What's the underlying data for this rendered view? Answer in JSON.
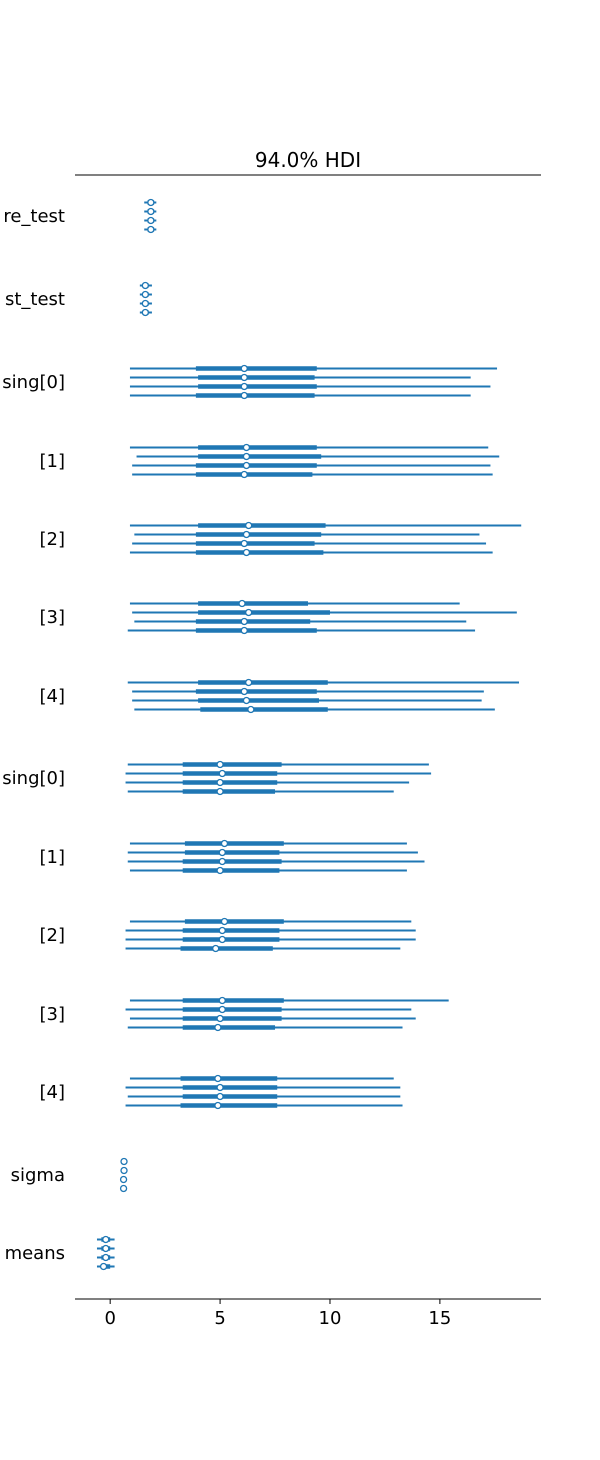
{
  "chart_data": {
    "type": "forest",
    "title": "94.0% HDI",
    "xlim": [
      -1.6,
      19.6
    ],
    "x_ticks": [
      0,
      5,
      10,
      15
    ],
    "x_tick_labels": [
      "0",
      "5",
      "10",
      "15"
    ],
    "grid": false,
    "legend": "none",
    "colors": {
      "series": "#1f77b4",
      "axis": "#000000",
      "marker_fill": "#ffffff"
    },
    "chains": 4,
    "series_note": "each row: [low, q25, mean, q75, high] per chain",
    "rows": [
      {
        "label": "re_test",
        "chains": [
          [
            1.55,
            1.7,
            1.85,
            2.0,
            2.1
          ],
          [
            1.55,
            1.7,
            1.85,
            2.0,
            2.1
          ],
          [
            1.55,
            1.7,
            1.85,
            2.0,
            2.1
          ],
          [
            1.55,
            1.7,
            1.85,
            2.0,
            2.1
          ]
        ]
      },
      {
        "label": "st_test",
        "chains": [
          [
            1.35,
            1.5,
            1.6,
            1.75,
            1.9
          ],
          [
            1.35,
            1.5,
            1.6,
            1.75,
            1.9
          ],
          [
            1.35,
            1.5,
            1.6,
            1.75,
            1.9
          ],
          [
            1.35,
            1.5,
            1.6,
            1.75,
            1.9
          ]
        ]
      },
      {
        "label": "sing[0]",
        "chains": [
          [
            0.9,
            3.9,
            6.1,
            9.4,
            17.6
          ],
          [
            0.9,
            4.0,
            6.1,
            9.3,
            16.4
          ],
          [
            0.9,
            4.0,
            6.1,
            9.4,
            17.3
          ],
          [
            0.9,
            3.9,
            6.1,
            9.3,
            16.4
          ]
        ]
      },
      {
        "label": "[1]",
        "chains": [
          [
            0.9,
            4.0,
            6.2,
            9.4,
            17.2
          ],
          [
            1.2,
            4.0,
            6.2,
            9.6,
            17.7
          ],
          [
            1.0,
            3.9,
            6.2,
            9.4,
            17.3
          ],
          [
            1.0,
            3.9,
            6.1,
            9.2,
            17.4
          ]
        ]
      },
      {
        "label": "[2]",
        "chains": [
          [
            0.9,
            4.0,
            6.3,
            9.8,
            18.7
          ],
          [
            1.1,
            3.9,
            6.2,
            9.6,
            16.8
          ],
          [
            1.0,
            3.9,
            6.1,
            9.3,
            17.1
          ],
          [
            0.9,
            3.9,
            6.2,
            9.7,
            17.4
          ]
        ]
      },
      {
        "label": "[3]",
        "chains": [
          [
            0.9,
            4.0,
            6.0,
            9.0,
            15.9
          ],
          [
            1.0,
            4.0,
            6.3,
            10.0,
            18.5
          ],
          [
            1.1,
            3.9,
            6.1,
            9.1,
            16.2
          ],
          [
            0.8,
            3.9,
            6.1,
            9.4,
            16.6
          ]
        ]
      },
      {
        "label": "[4]",
        "chains": [
          [
            0.8,
            4.0,
            6.3,
            9.9,
            18.6
          ],
          [
            1.0,
            3.9,
            6.1,
            9.4,
            17.0
          ],
          [
            1.0,
            4.0,
            6.2,
            9.5,
            16.9
          ],
          [
            1.1,
            4.1,
            6.4,
            9.9,
            17.5
          ]
        ]
      },
      {
        "label": "sing[0]",
        "chains": [
          [
            0.8,
            3.3,
            5.0,
            7.8,
            14.5
          ],
          [
            0.7,
            3.3,
            5.1,
            7.6,
            14.6
          ],
          [
            0.7,
            3.3,
            5.0,
            7.6,
            13.6
          ],
          [
            0.8,
            3.3,
            5.0,
            7.5,
            12.9
          ]
        ]
      },
      {
        "label": "[1]",
        "chains": [
          [
            0.9,
            3.4,
            5.2,
            7.9,
            13.5
          ],
          [
            0.8,
            3.4,
            5.1,
            7.7,
            14.0
          ],
          [
            0.8,
            3.3,
            5.1,
            7.8,
            14.3
          ],
          [
            0.9,
            3.3,
            5.0,
            7.7,
            13.5
          ]
        ]
      },
      {
        "label": "[2]",
        "chains": [
          [
            0.9,
            3.4,
            5.2,
            7.9,
            13.7
          ],
          [
            0.7,
            3.3,
            5.1,
            7.7,
            13.9
          ],
          [
            0.7,
            3.3,
            5.1,
            7.7,
            13.9
          ],
          [
            0.7,
            3.2,
            4.8,
            7.4,
            13.2
          ]
        ]
      },
      {
        "label": "[3]",
        "chains": [
          [
            0.9,
            3.3,
            5.1,
            7.9,
            15.4
          ],
          [
            0.7,
            3.3,
            5.1,
            7.8,
            13.7
          ],
          [
            0.9,
            3.3,
            5.0,
            7.8,
            13.9
          ],
          [
            0.8,
            3.3,
            4.9,
            7.5,
            13.3
          ]
        ]
      },
      {
        "label": "[4]",
        "chains": [
          [
            0.9,
            3.2,
            4.9,
            7.6,
            12.9
          ],
          [
            0.7,
            3.3,
            5.0,
            7.6,
            13.2
          ],
          [
            0.8,
            3.3,
            5.0,
            7.6,
            13.2
          ],
          [
            0.7,
            3.2,
            4.9,
            7.6,
            13.3
          ]
        ]
      },
      {
        "label": "sigma",
        "chains": [
          [
            0.6,
            0.62,
            0.63,
            0.64,
            0.66
          ],
          [
            0.6,
            0.62,
            0.63,
            0.64,
            0.66
          ],
          [
            0.58,
            0.6,
            0.61,
            0.62,
            0.64
          ],
          [
            0.58,
            0.6,
            0.61,
            0.62,
            0.64
          ]
        ]
      },
      {
        "label": "means",
        "chains": [
          [
            -0.6,
            -0.4,
            -0.2,
            0.0,
            0.2
          ],
          [
            -0.6,
            -0.4,
            -0.2,
            0.0,
            0.2
          ],
          [
            -0.6,
            -0.4,
            -0.2,
            0.0,
            0.2
          ],
          [
            -0.6,
            -0.4,
            -0.3,
            0.0,
            0.2
          ]
        ]
      }
    ]
  }
}
